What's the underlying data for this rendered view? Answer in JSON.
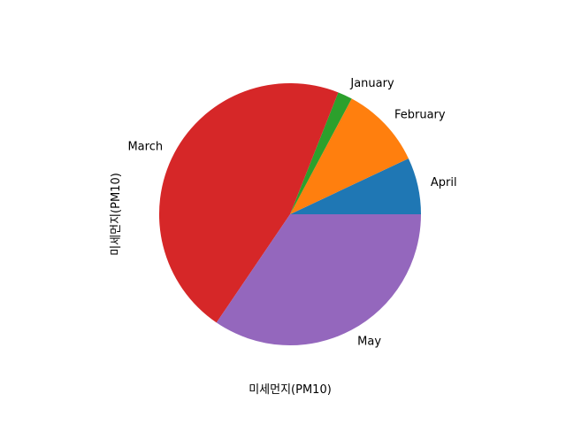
{
  "chart_data": {
    "type": "pie",
    "title": "",
    "xlabel": "미세먼지(PM10)",
    "ylabel": "미세먼지(PM10)",
    "slices": [
      {
        "label": "April",
        "value": 7.0,
        "color": "#1f77b4"
      },
      {
        "label": "February",
        "value": 10.2,
        "color": "#ff7f0e"
      },
      {
        "label": "January",
        "value": 1.8,
        "color": "#2ca02c"
      },
      {
        "label": "March",
        "value": 46.5,
        "color": "#d62728"
      },
      {
        "label": "May",
        "value": 34.5,
        "color": "#9467bd"
      }
    ],
    "legend": "none",
    "grid": false
  }
}
